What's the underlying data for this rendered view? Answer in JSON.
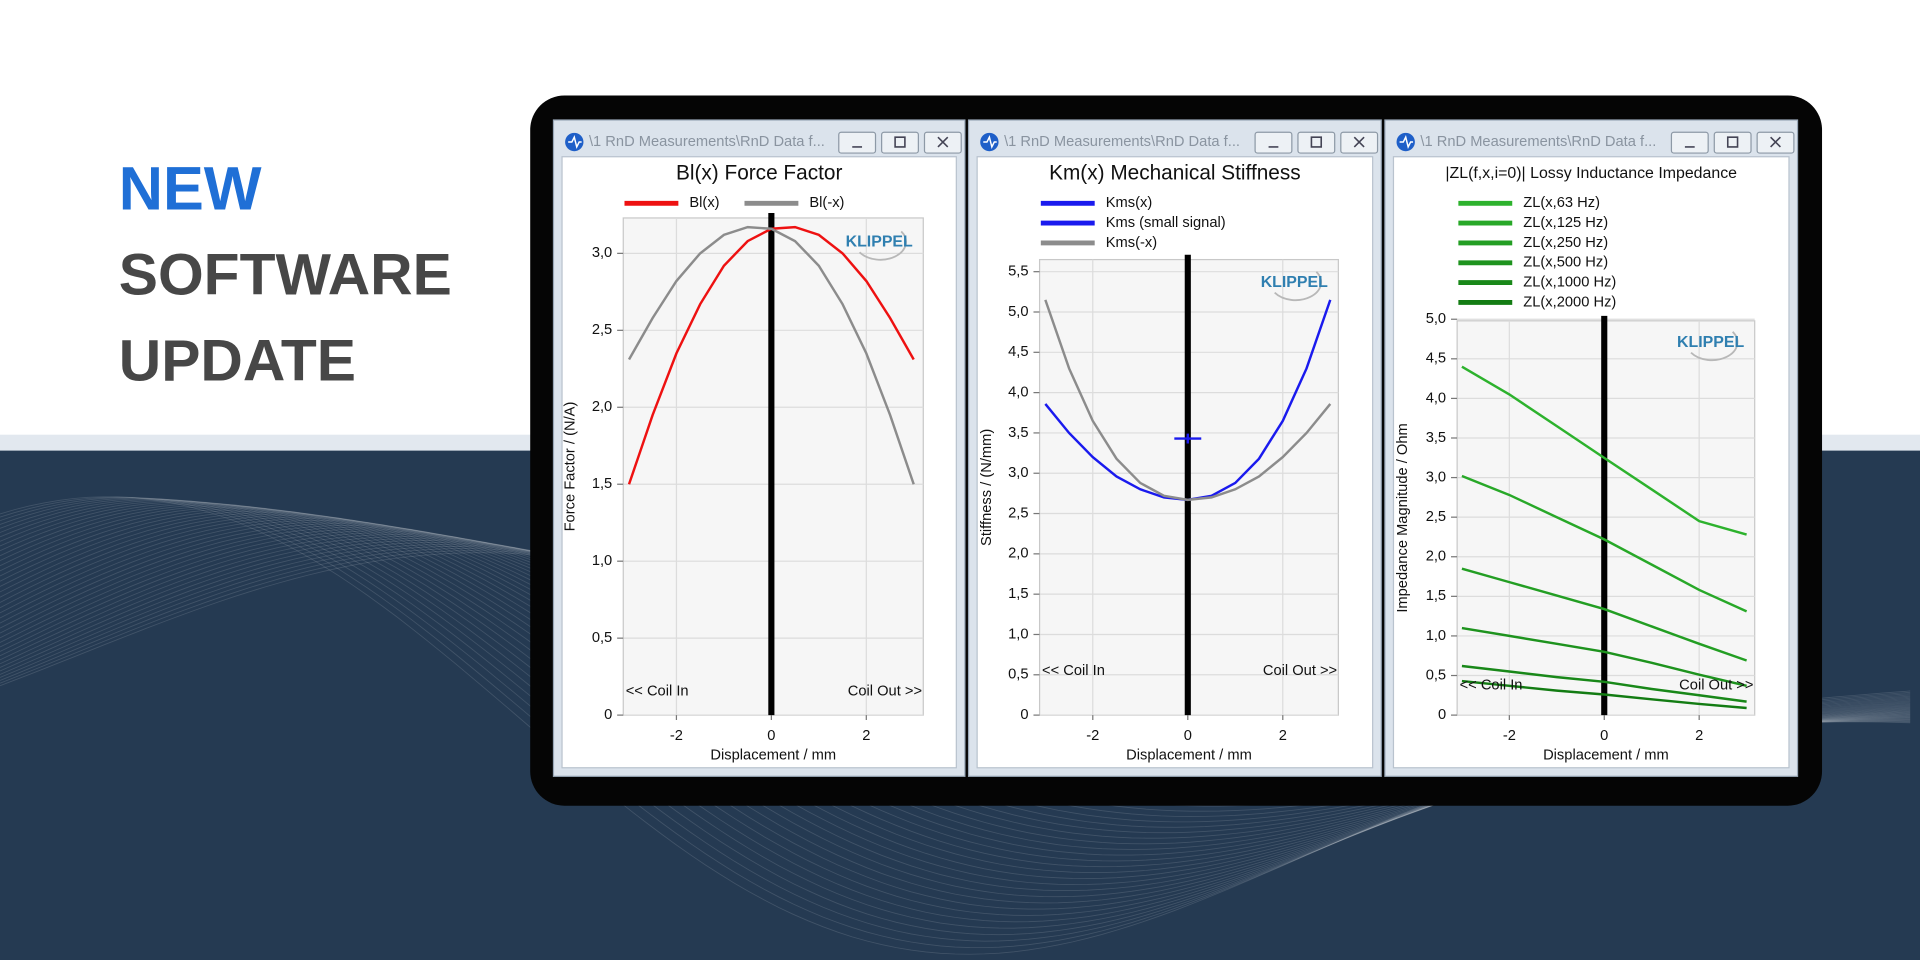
{
  "headline": [
    "NEW",
    "SOFTWARE",
    "UPDATE"
  ],
  "brand": "KLIPPEL",
  "chart_data": [
    {
      "type": "line",
      "window_title": "\\1 RnD Measurements\\RnD Data f...",
      "title": "Bl(x) Force Factor",
      "xlabel": "Displacement / mm",
      "ylabel": "Force Factor / (N/A)",
      "annotations": [
        "<< Coil In",
        "Coil Out >>"
      ],
      "grid": true,
      "legend": "top-row",
      "x": [
        -3,
        -2.5,
        -2,
        -1.5,
        -1,
        -0.5,
        0,
        0.5,
        1,
        1.5,
        2,
        2.5,
        3
      ],
      "xlim": [
        -3.12,
        3.2
      ],
      "xticks": [
        -2,
        0,
        2
      ],
      "ylim": [
        0,
        3.23
      ],
      "yticks": [
        0,
        {
          "value": 0.5,
          "label": "0,5"
        },
        {
          "value": 1,
          "label": "1,0"
        },
        {
          "value": 1.5,
          "label": "1,5"
        },
        {
          "value": 2,
          "label": "2,0"
        },
        {
          "value": 2.5,
          "label": "2,5"
        },
        {
          "value": 3,
          "label": "3,0"
        }
      ],
      "series": [
        {
          "name": "Bl(x)",
          "color": "#ee1111",
          "values": [
            1.5,
            1.95,
            2.35,
            2.67,
            2.92,
            3.08,
            3.16,
            3.17,
            3.12,
            3.0,
            2.82,
            2.58,
            2.31
          ]
        },
        {
          "name": "Bl(-x)",
          "color": "#8c8c8c",
          "values": [
            2.31,
            2.58,
            2.82,
            3.0,
            3.12,
            3.17,
            3.16,
            3.08,
            2.92,
            2.67,
            2.35,
            1.95,
            1.5
          ]
        }
      ]
    },
    {
      "type": "line",
      "window_title": "\\1 RnD Measurements\\RnD Data f...",
      "title": "Km(x) Mechanical Stiffness",
      "xlabel": "Displacement / mm",
      "ylabel": "Stiffness / (N/mm)",
      "annotations": [
        "<< Coil In",
        "Coil Out >>"
      ],
      "grid": true,
      "legend": "top-column",
      "x": [
        -3,
        -2.5,
        -2,
        -1.5,
        -1,
        -0.5,
        0,
        0.5,
        1,
        1.5,
        2,
        2.5,
        3
      ],
      "xlim": [
        -3.12,
        3.17
      ],
      "xticks": [
        -2,
        0,
        2
      ],
      "ylim": [
        0,
        5.65
      ],
      "yticks": [
        0,
        {
          "value": 0.5,
          "label": "0,5"
        },
        {
          "value": 1,
          "label": "1,0"
        },
        {
          "value": 1.5,
          "label": "1,5"
        },
        {
          "value": 2,
          "label": "2,0"
        },
        {
          "value": 2.5,
          "label": "2,5"
        },
        {
          "value": 3,
          "label": "3,0"
        },
        {
          "value": 3.5,
          "label": "3,5"
        },
        {
          "value": 4,
          "label": "4,0"
        },
        {
          "value": 4.5,
          "label": "4,5"
        },
        {
          "value": 5,
          "label": "5,0"
        },
        {
          "value": 5.5,
          "label": "5,5"
        }
      ],
      "series": [
        {
          "name": "Kms(x)",
          "color": "#1a1aee",
          "values": [
            3.86,
            3.5,
            3.2,
            2.96,
            2.8,
            2.7,
            2.67,
            2.72,
            2.88,
            3.18,
            3.65,
            4.3,
            5.15
          ]
        },
        {
          "name": "Kms (small signal)",
          "color": "#1a1aee",
          "x": [
            0
          ],
          "values": [
            3.43
          ]
        },
        {
          "name": "Kms(-x)",
          "color": "#8c8c8c",
          "values": [
            5.15,
            4.3,
            3.65,
            3.18,
            2.88,
            2.72,
            2.67,
            2.7,
            2.8,
            2.96,
            3.2,
            3.5,
            3.86
          ]
        }
      ]
    },
    {
      "type": "line",
      "window_title": "\\1 RnD Measurements\\RnD Data f...",
      "title": "|ZL(f,x,i=0)| Lossy Inductance Impedance",
      "xlabel": "Displacement / mm",
      "ylabel": "Impedance Magnitude / Ohm",
      "annotations": [
        "<< Coil In",
        "Coil Out >>"
      ],
      "grid": true,
      "legend": "top-column",
      "x": [
        -3,
        -2,
        -1,
        0,
        1,
        2,
        3
      ],
      "xlim": [
        -3.1,
        3.17
      ],
      "xticks": [
        -2,
        0,
        2
      ],
      "ylim": [
        0,
        4.98
      ],
      "yticks": [
        0,
        {
          "value": 0.5,
          "label": "0,5"
        },
        {
          "value": 1,
          "label": "1,0"
        },
        {
          "value": 1.5,
          "label": "1,5"
        },
        {
          "value": 2,
          "label": "2,0"
        },
        {
          "value": 2.5,
          "label": "2,5"
        },
        {
          "value": 3,
          "label": "3,0"
        },
        {
          "value": 3.5,
          "label": "3,5"
        },
        {
          "value": 4,
          "label": "4,0"
        },
        {
          "value": 4.5,
          "label": "4,5"
        },
        {
          "value": 5,
          "label": "5,0"
        }
      ],
      "series": [
        {
          "name": "ZL(x,63 Hz)",
          "color": "#2db22d",
          "values": [
            4.4,
            4.05,
            3.65,
            3.25,
            2.85,
            2.45,
            2.28
          ]
        },
        {
          "name": "ZL(x,125 Hz)",
          "color": "#28a828",
          "values": [
            3.02,
            2.78,
            2.5,
            2.22,
            1.9,
            1.58,
            1.31
          ]
        },
        {
          "name": "ZL(x,250 Hz)",
          "color": "#239e23",
          "values": [
            1.85,
            1.68,
            1.51,
            1.34,
            1.12,
            0.9,
            0.69
          ]
        },
        {
          "name": "ZL(x,500 Hz)",
          "color": "#1e931e",
          "values": [
            1.1,
            1.0,
            0.9,
            0.8,
            0.66,
            0.51,
            0.37
          ]
        },
        {
          "name": "ZL(x,1000 Hz)",
          "color": "#198819",
          "values": [
            0.62,
            0.55,
            0.48,
            0.42,
            0.33,
            0.25,
            0.17
          ]
        },
        {
          "name": "ZL(x,2000 Hz)",
          "color": "#137c13",
          "values": [
            0.43,
            0.37,
            0.31,
            0.26,
            0.2,
            0.14,
            0.09
          ]
        }
      ]
    }
  ]
}
